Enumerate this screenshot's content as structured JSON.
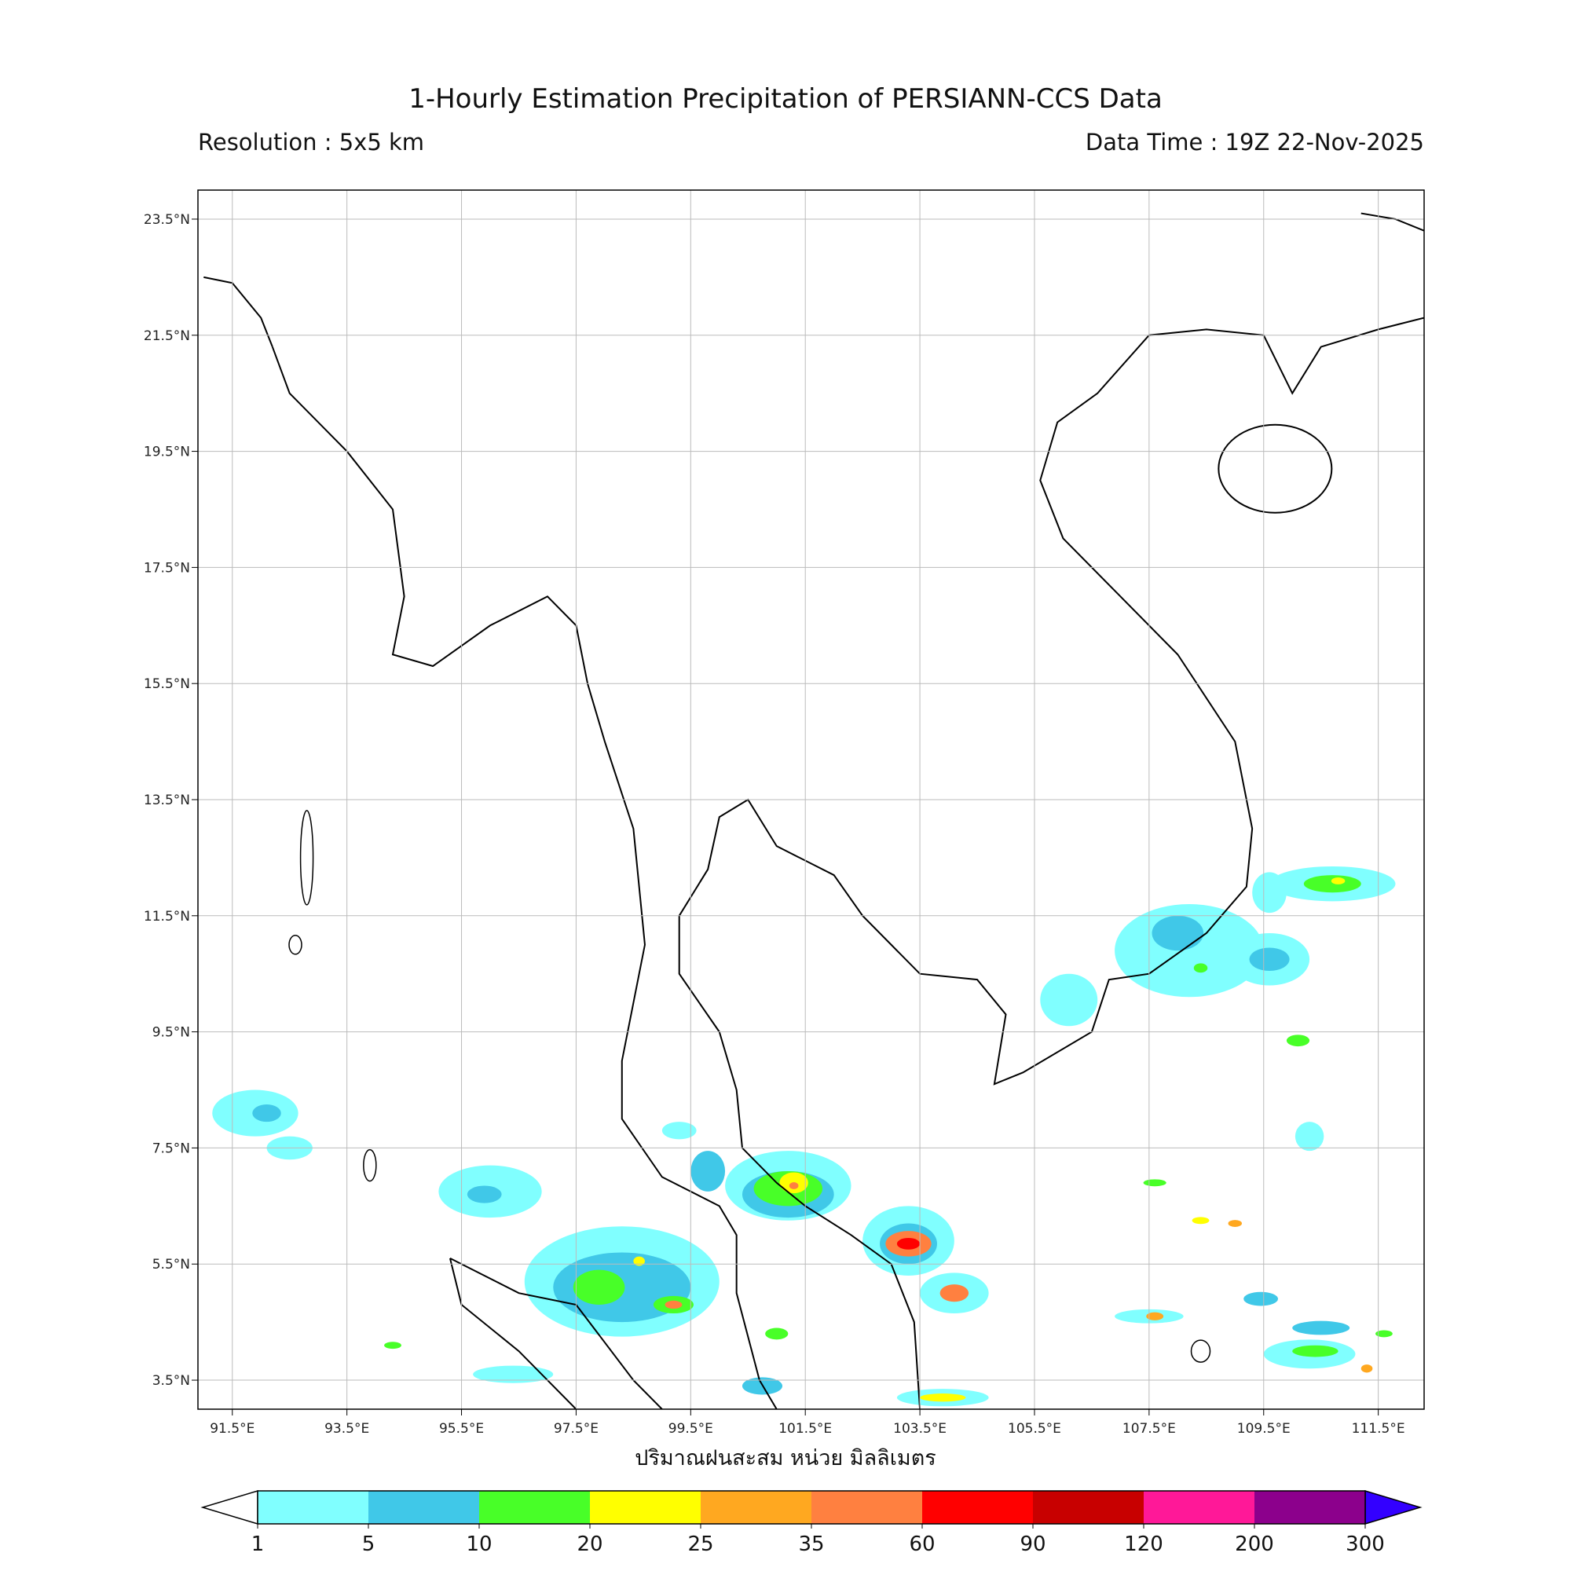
{
  "header": {
    "title": "1-Hourly Estimation Precipitation of PERSIANN-CCS Data",
    "resolution": "Resolution : 5x5 km",
    "data_time": "Data Time : 19Z 22-Nov-2025"
  },
  "map": {
    "lon_range": [
      90.9,
      112.3
    ],
    "lat_range": [
      3.0,
      24.0
    ],
    "lon_ticks": [
      "91.5°E",
      "93.5°E",
      "95.5°E",
      "97.5°E",
      "99.5°E",
      "101.5°E",
      "103.5°E",
      "105.5°E",
      "107.5°E",
      "109.5°E",
      "111.5°E"
    ],
    "lat_ticks": [
      "23.5°N",
      "21.5°N",
      "19.5°N",
      "17.5°N",
      "15.5°N",
      "13.5°N",
      "11.5°N",
      "9.5°N",
      "7.5°N",
      "5.5°N",
      "3.5°N"
    ],
    "grid": true,
    "xlabel": "ปริมาณฝนสะสม หน่วย มิลลิเมตร",
    "precip_areas": [
      {
        "lon": 98.3,
        "lat": 5.2,
        "rx": 1.7,
        "ry": 0.95,
        "level": 1
      },
      {
        "lon": 98.3,
        "lat": 5.1,
        "rx": 1.2,
        "ry": 0.6,
        "level": 5
      },
      {
        "lon": 97.9,
        "lat": 5.1,
        "rx": 0.45,
        "ry": 0.3,
        "level": 10
      },
      {
        "lon": 99.2,
        "lat": 4.8,
        "rx": 0.35,
        "ry": 0.15,
        "level": 10
      },
      {
        "lon": 99.2,
        "lat": 4.8,
        "rx": 0.15,
        "ry": 0.07,
        "level": 35
      },
      {
        "lon": 98.6,
        "lat": 5.55,
        "rx": 0.1,
        "ry": 0.08,
        "level": 20
      },
      {
        "lon": 96.0,
        "lat": 6.75,
        "rx": 0.9,
        "ry": 0.45,
        "level": 1
      },
      {
        "lon": 95.9,
        "lat": 6.7,
        "rx": 0.3,
        "ry": 0.15,
        "level": 5
      },
      {
        "lon": 101.2,
        "lat": 6.85,
        "rx": 1.1,
        "ry": 0.6,
        "level": 1
      },
      {
        "lon": 101.2,
        "lat": 6.7,
        "rx": 0.8,
        "ry": 0.4,
        "level": 5
      },
      {
        "lon": 101.2,
        "lat": 6.8,
        "rx": 0.6,
        "ry": 0.3,
        "level": 10
      },
      {
        "lon": 101.3,
        "lat": 6.9,
        "rx": 0.25,
        "ry": 0.18,
        "level": 20
      },
      {
        "lon": 101.3,
        "lat": 6.85,
        "rx": 0.08,
        "ry": 0.06,
        "level": 35
      },
      {
        "lon": 99.8,
        "lat": 7.1,
        "rx": 0.3,
        "ry": 0.35,
        "level": 5
      },
      {
        "lon": 103.3,
        "lat": 5.9,
        "rx": 0.8,
        "ry": 0.6,
        "level": 1
      },
      {
        "lon": 103.3,
        "lat": 5.85,
        "rx": 0.5,
        "ry": 0.35,
        "level": 5
      },
      {
        "lon": 103.3,
        "lat": 5.85,
        "rx": 0.4,
        "ry": 0.22,
        "level": 35
      },
      {
        "lon": 103.3,
        "lat": 5.85,
        "rx": 0.2,
        "ry": 0.1,
        "level": 60
      },
      {
        "lon": 104.1,
        "lat": 5.0,
        "rx": 0.6,
        "ry": 0.35,
        "level": 1
      },
      {
        "lon": 104.1,
        "lat": 5.0,
        "rx": 0.25,
        "ry": 0.15,
        "level": 35
      },
      {
        "lon": 108.2,
        "lat": 10.9,
        "rx": 1.3,
        "ry": 0.8,
        "level": 1
      },
      {
        "lon": 108.0,
        "lat": 11.2,
        "rx": 0.45,
        "ry": 0.3,
        "level": 5
      },
      {
        "lon": 108.4,
        "lat": 10.6,
        "rx": 0.12,
        "ry": 0.08,
        "level": 10
      },
      {
        "lon": 109.6,
        "lat": 10.75,
        "rx": 0.7,
        "ry": 0.45,
        "level": 1
      },
      {
        "lon": 109.6,
        "lat": 10.75,
        "rx": 0.35,
        "ry": 0.2,
        "level": 5
      },
      {
        "lon": 110.7,
        "lat": 12.05,
        "rx": 1.1,
        "ry": 0.3,
        "level": 1
      },
      {
        "lon": 110.7,
        "lat": 12.05,
        "rx": 0.5,
        "ry": 0.15,
        "level": 10
      },
      {
        "lon": 110.8,
        "lat": 12.1,
        "rx": 0.12,
        "ry": 0.06,
        "level": 20
      },
      {
        "lon": 109.6,
        "lat": 11.9,
        "rx": 0.3,
        "ry": 0.35,
        "level": 1
      },
      {
        "lon": 106.1,
        "lat": 10.05,
        "rx": 0.5,
        "ry": 0.45,
        "level": 1
      },
      {
        "lon": 91.9,
        "lat": 8.1,
        "rx": 0.75,
        "ry": 0.4,
        "level": 1
      },
      {
        "lon": 92.1,
        "lat": 8.1,
        "rx": 0.25,
        "ry": 0.15,
        "level": 5
      },
      {
        "lon": 92.5,
        "lat": 7.5,
        "rx": 0.4,
        "ry": 0.2,
        "level": 1
      },
      {
        "lon": 110.3,
        "lat": 3.95,
        "rx": 0.8,
        "ry": 0.25,
        "level": 1
      },
      {
        "lon": 110.4,
        "lat": 4.0,
        "rx": 0.4,
        "ry": 0.1,
        "level": 10
      },
      {
        "lon": 110.5,
        "lat": 4.4,
        "rx": 0.5,
        "ry": 0.12,
        "level": 5
      },
      {
        "lon": 103.9,
        "lat": 3.2,
        "rx": 0.8,
        "ry": 0.15,
        "level": 1
      },
      {
        "lon": 103.9,
        "lat": 3.2,
        "rx": 0.4,
        "ry": 0.07,
        "level": 20
      },
      {
        "lon": 100.75,
        "lat": 3.4,
        "rx": 0.35,
        "ry": 0.15,
        "level": 5
      },
      {
        "lon": 107.5,
        "lat": 4.6,
        "rx": 0.6,
        "ry": 0.12,
        "level": 1
      },
      {
        "lon": 107.6,
        "lat": 4.6,
        "rx": 0.15,
        "ry": 0.07,
        "level": 25
      },
      {
        "lon": 109.45,
        "lat": 4.9,
        "rx": 0.3,
        "ry": 0.12,
        "level": 5
      },
      {
        "lon": 110.3,
        "lat": 7.7,
        "rx": 0.25,
        "ry": 0.25,
        "level": 1
      },
      {
        "lon": 110.1,
        "lat": 9.35,
        "rx": 0.2,
        "ry": 0.1,
        "level": 10
      },
      {
        "lon": 96.4,
        "lat": 3.6,
        "rx": 0.7,
        "ry": 0.15,
        "level": 1
      },
      {
        "lon": 101.0,
        "lat": 4.3,
        "rx": 0.2,
        "ry": 0.1,
        "level": 10
      },
      {
        "lon": 107.6,
        "lat": 6.9,
        "rx": 0.2,
        "ry": 0.06,
        "level": 10
      },
      {
        "lon": 108.4,
        "lat": 6.25,
        "rx": 0.15,
        "ry": 0.06,
        "level": 20
      },
      {
        "lon": 109.0,
        "lat": 6.2,
        "rx": 0.12,
        "ry": 0.06,
        "level": 25
      },
      {
        "lon": 94.3,
        "lat": 4.1,
        "rx": 0.15,
        "ry": 0.06,
        "level": 10
      },
      {
        "lon": 99.3,
        "lat": 7.8,
        "rx": 0.3,
        "ry": 0.15,
        "level": 1
      },
      {
        "lon": 111.6,
        "lat": 4.3,
        "rx": 0.15,
        "ry": 0.06,
        "level": 10
      },
      {
        "lon": 111.3,
        "lat": 3.7,
        "rx": 0.1,
        "ry": 0.07,
        "level": 25
      }
    ]
  },
  "colorbar": {
    "labels": [
      "1",
      "5",
      "10",
      "20",
      "25",
      "35",
      "60",
      "90",
      "120",
      "200",
      "300"
    ],
    "colors": [
      "#80ffff",
      "#40c8e8",
      "#48ff28",
      "#ffff00",
      "#ffa820",
      "#ff8040",
      "#ff0000",
      "#c80000",
      "#ff1898",
      "#8c008c"
    ],
    "under_color": "#ffffff",
    "over_color": "#3300ff"
  }
}
